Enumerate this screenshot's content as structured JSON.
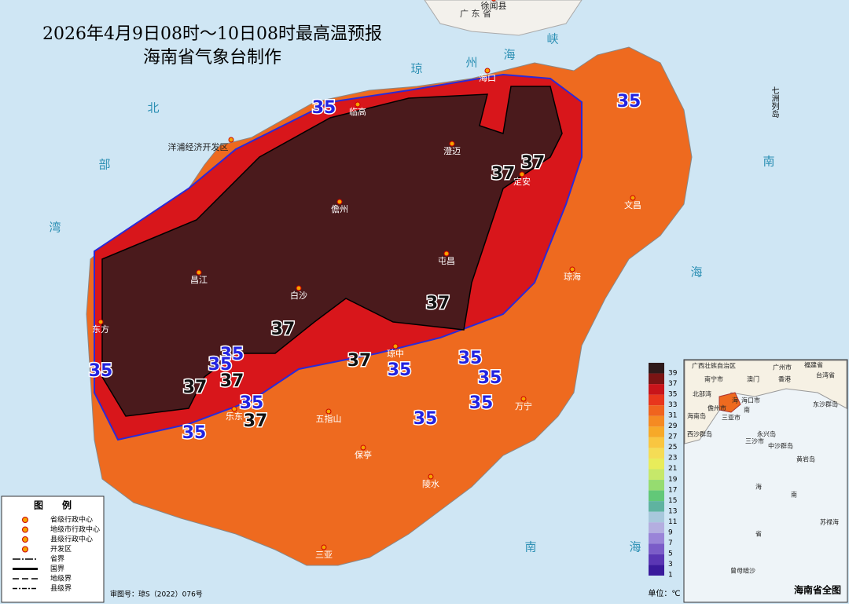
{
  "header": {
    "title_line1": "2026年4月9日08时～10日08时最高温预报",
    "title_line2": "海南省气象台制作"
  },
  "cities": [
    "海口",
    "临高",
    "澄迈",
    "定安",
    "儋州",
    "文昌",
    "屯昌",
    "琼海",
    "昌江",
    "白沙",
    "东方",
    "琼中",
    "乐东",
    "五指山",
    "万宁",
    "保亭",
    "陵水",
    "三亚",
    "洋浦经济开发区",
    "徐闻县"
  ],
  "sea_labels": [
    "北",
    "部",
    "湾",
    "琼",
    "州",
    "海",
    "峡",
    "南",
    "海",
    "南",
    "海",
    "广 东 省"
  ],
  "island_label": "七洲列岛",
  "contour_labels": [
    35,
    37,
    37,
    37,
    37,
    35,
    35,
    37,
    35,
    35,
    35,
    35,
    35,
    35,
    37,
    37,
    35,
    37,
    35,
    35
  ],
  "colorbar": {
    "ticks": [
      39,
      37,
      35,
      33,
      31,
      29,
      27,
      25,
      23,
      21,
      19,
      17,
      15,
      13,
      11,
      9,
      7,
      5,
      3,
      1
    ],
    "unit": "单位：℃"
  },
  "legend": {
    "title": "图　　例",
    "items": [
      "省级行政中心",
      "地级市行政中心",
      "县级行政中心",
      "开发区",
      "省界",
      "国界",
      "地级界",
      "县级界"
    ]
  },
  "approval": "审图号：琼S（2022）076号",
  "inset": {
    "title": "海南省全图",
    "labels": [
      "广西壮族自治区",
      "南宁市",
      "广州市",
      "福建省",
      "澳门",
      "香港",
      "台湾省",
      "北部湾",
      "儋州市",
      "海口市",
      "三亚市",
      "海南岛",
      "东沙群岛",
      "西沙群岛",
      "永兴岛",
      "三沙市",
      "中沙群岛",
      "黄岩岛",
      "海",
      "南",
      "省",
      "海",
      "南",
      "苏禄海",
      "曾母暗沙"
    ]
  }
}
